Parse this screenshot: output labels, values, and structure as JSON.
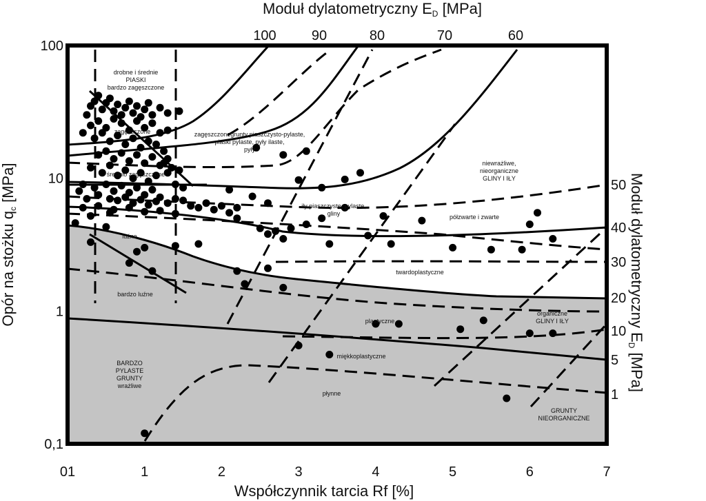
{
  "chart_data": {
    "type": "scatter",
    "title": "",
    "top_axis_title": "Moduł dylatometryczny E",
    "top_axis_subscript": "D",
    "top_axis_unit": "[MPa]",
    "left_axis_title": "Opór na stożku q",
    "left_axis_subscript": "c",
    "left_axis_unit": "[MPa]",
    "right_axis_title": "Moduł dylatometryczny E",
    "right_axis_subscript": "D",
    "right_axis_unit": "[MPa]",
    "xlabel": "Współczynnik tarcia Rf [%]",
    "x_ticks": [
      "01",
      "1",
      "2",
      "3",
      "4",
      "5",
      "6",
      "7"
    ],
    "y_scale": "log",
    "y_ticks": [
      "100",
      "10",
      "1",
      "0,1"
    ],
    "ylim": [
      0.1,
      100
    ],
    "xlim": [
      0,
      7
    ],
    "top_ticks": [
      "100",
      "90",
      "80",
      "70",
      "60"
    ],
    "right_ticks": [
      "50",
      "40",
      "30",
      "20",
      "10",
      "5",
      "1"
    ],
    "colors": {
      "shade": "#c4c4c4",
      "line": "#000000",
      "background": "#ffffff"
    },
    "zones": [
      {
        "lines": [
          "drobne i średnie",
          "PIASKI",
          "bardzo zagęszczone"
        ]
      },
      {
        "lines": [
          "zagęszczone"
        ]
      },
      {
        "lines": [
          "zagęszczonegrunty piaszczysto-pylaste,",
          "piaski pylaste, pyły ilaste,",
          "pyły"
        ]
      },
      {
        "lines": [
          "średnio zagęszczone"
        ]
      },
      {
        "lines": [
          "niewrażliwe,",
          "nieorganiczne",
          "GLINY I IŁY"
        ]
      },
      {
        "lines": [
          "iły piaszczyste, pylaste,",
          "gliny"
        ]
      },
      {
        "lines": [
          "półzwarte i zwarte"
        ]
      },
      {
        "lines": [
          "luźne"
        ]
      },
      {
        "lines": [
          "twardoplastyczne"
        ]
      },
      {
        "lines": [
          "bardzo luźne"
        ]
      },
      {
        "lines": [
          "organiczne",
          "GLINY I IŁY"
        ]
      },
      {
        "lines": [
          "plastyczne"
        ]
      },
      {
        "lines": [
          "miękkoplastyczne"
        ]
      },
      {
        "lines": [
          "BARDZO",
          "PYLASTE",
          "GRUNTY",
          "wrażliwe"
        ]
      },
      {
        "lines": [
          "płynne"
        ]
      },
      {
        "lines": [
          "GRUNTY",
          "NIEORGANICZNE"
        ]
      }
    ],
    "points": [
      [
        0.25,
        30
      ],
      [
        0.3,
        35
      ],
      [
        0.35,
        38
      ],
      [
        0.4,
        42
      ],
      [
        0.45,
        33
      ],
      [
        0.5,
        37
      ],
      [
        0.55,
        40
      ],
      [
        0.6,
        32
      ],
      [
        0.65,
        36
      ],
      [
        0.7,
        30
      ],
      [
        0.75,
        34
      ],
      [
        0.8,
        38
      ],
      [
        0.85,
        31
      ],
      [
        0.9,
        35
      ],
      [
        0.95,
        29
      ],
      [
        1.0,
        33
      ],
      [
        1.05,
        37
      ],
      [
        1.1,
        30
      ],
      [
        1.2,
        34
      ],
      [
        1.3,
        31
      ],
      [
        0.3,
        25
      ],
      [
        0.4,
        27
      ],
      [
        0.5,
        24
      ],
      [
        0.6,
        28
      ],
      [
        0.7,
        26
      ],
      [
        0.8,
        23
      ],
      [
        0.9,
        27
      ],
      [
        1.0,
        24
      ],
      [
        1.1,
        26
      ],
      [
        1.2,
        22
      ],
      [
        0.35,
        20
      ],
      [
        0.45,
        22
      ],
      [
        0.55,
        19
      ],
      [
        0.65,
        21
      ],
      [
        0.75,
        18
      ],
      [
        0.85,
        20
      ],
      [
        0.95,
        17
      ],
      [
        1.05,
        19
      ],
      [
        1.15,
        18
      ],
      [
        1.25,
        16
      ],
      [
        0.4,
        15
      ],
      [
        0.5,
        16
      ],
      [
        0.6,
        14
      ],
      [
        0.7,
        15.5
      ],
      [
        0.8,
        13.5
      ],
      [
        0.9,
        15
      ],
      [
        1.0,
        13
      ],
      [
        1.1,
        14.5
      ],
      [
        1.2,
        12.5
      ],
      [
        1.3,
        14
      ],
      [
        0.3,
        12
      ],
      [
        0.45,
        11
      ],
      [
        0.55,
        12.5
      ],
      [
        0.65,
        10.5
      ],
      [
        0.75,
        11.5
      ],
      [
        0.85,
        10
      ],
      [
        0.95,
        11
      ],
      [
        1.05,
        9.5
      ],
      [
        1.15,
        10.5
      ],
      [
        1.3,
        11
      ],
      [
        0.2,
        9
      ],
      [
        0.35,
        8.5
      ],
      [
        0.5,
        9
      ],
      [
        0.6,
        8
      ],
      [
        0.7,
        8.8
      ],
      [
        0.8,
        7.8
      ],
      [
        0.9,
        8.5
      ],
      [
        1.0,
        7.5
      ],
      [
        1.1,
        8.2
      ],
      [
        1.2,
        7.2
      ],
      [
        0.15,
        8
      ],
      [
        0.25,
        7
      ],
      [
        0.4,
        7.5
      ],
      [
        0.55,
        7
      ],
      [
        0.65,
        6.8
      ],
      [
        0.75,
        7.2
      ],
      [
        0.85,
        6.5
      ],
      [
        0.95,
        6.9
      ],
      [
        1.05,
        6.3
      ],
      [
        1.15,
        6.7
      ],
      [
        1.3,
        6.5
      ],
      [
        1.4,
        7
      ],
      [
        1.5,
        6.8
      ],
      [
        1.6,
        6.2
      ],
      [
        1.7,
        6
      ],
      [
        1.8,
        6.5
      ],
      [
        1.9,
        5.8
      ],
      [
        2.0,
        6.2
      ],
      [
        2.1,
        5.5
      ],
      [
        2.2,
        6
      ],
      [
        0.2,
        6
      ],
      [
        0.4,
        6.2
      ],
      [
        0.6,
        5.8
      ],
      [
        0.8,
        6
      ],
      [
        1.0,
        5.6
      ],
      [
        1.2,
        5.7
      ],
      [
        1.4,
        5.4
      ],
      [
        0.55,
        5.5
      ],
      [
        0.3,
        5.2
      ],
      [
        0.1,
        4.6
      ],
      [
        1.25,
        13
      ],
      [
        1.35,
        12
      ],
      [
        1.45,
        11.5
      ],
      [
        1.4,
        9
      ],
      [
        1.5,
        8.5
      ],
      [
        2.1,
        8.2
      ],
      [
        2.4,
        7.3
      ],
      [
        2.6,
        6.5
      ],
      [
        2.2,
        5
      ],
      [
        2.5,
        4.2
      ],
      [
        2.6,
        3.8
      ],
      [
        2.7,
        4
      ],
      [
        2.9,
        4.2
      ],
      [
        2.8,
        3.5
      ],
      [
        3.1,
        4.5
      ],
      [
        3.3,
        5
      ],
      [
        3.4,
        3.2
      ],
      [
        3.6,
        6
      ],
      [
        4.1,
        5.2
      ],
      [
        4.6,
        4.8
      ],
      [
        3.9,
        3.7
      ],
      [
        4.2,
        3.2
      ],
      [
        5.0,
        3.0
      ],
      [
        5.5,
        2.9
      ],
      [
        5.9,
        2.9
      ],
      [
        6.3,
        3.5
      ],
      [
        6.0,
        4.5
      ],
      [
        6.1,
        5.5
      ],
      [
        3.3,
        8.5
      ],
      [
        3.0,
        9.7
      ],
      [
        2.8,
        15
      ],
      [
        3.1,
        16
      ],
      [
        2.45,
        17
      ],
      [
        3.6,
        9.8
      ],
      [
        3.8,
        11
      ],
      [
        0.3,
        3.3
      ],
      [
        0.5,
        4.3
      ],
      [
        0.9,
        2.8
      ],
      [
        1.0,
        3.0
      ],
      [
        1.4,
        3.1
      ],
      [
        0.8,
        2.3
      ],
      [
        1.1,
        2.0
      ],
      [
        1.7,
        3.2
      ],
      [
        2.2,
        2.0
      ],
      [
        2.6,
        2.1
      ],
      [
        2.3,
        1.6
      ],
      [
        2.8,
        1.5
      ],
      [
        4.0,
        0.8
      ],
      [
        4.3,
        0.8
      ],
      [
        5.1,
        0.73
      ],
      [
        5.4,
        0.85
      ],
      [
        6.3,
        0.68
      ],
      [
        6.0,
        0.68
      ],
      [
        3.0,
        0.55
      ],
      [
        3.4,
        0.47
      ],
      [
        5.7,
        0.22
      ],
      [
        1.0,
        0.12
      ],
      [
        0.2,
        22
      ],
      [
        1.3,
        23
      ],
      [
        1.45,
        32
      ]
    ]
  }
}
